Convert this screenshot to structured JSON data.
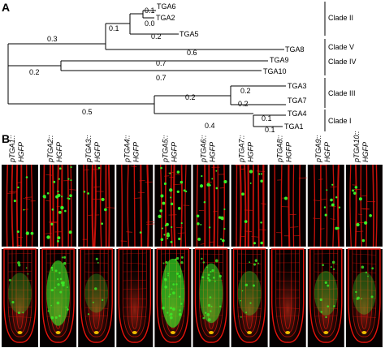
{
  "panel_a": {
    "label": "A",
    "leaves": [
      {
        "name": "TGA6"
      },
      {
        "name": "TGA2"
      },
      {
        "name": "TGA5"
      },
      {
        "name": "TGA8"
      },
      {
        "name": "TGA9"
      },
      {
        "name": "TGA10"
      },
      {
        "name": "TGA3"
      },
      {
        "name": "TGA7"
      },
      {
        "name": "TGA4"
      },
      {
        "name": "TGA1"
      }
    ],
    "branch_lengths": [
      "0.1",
      "0.0",
      "0.1",
      "0.2",
      "0.3",
      "0.6",
      "0.7",
      "0.7",
      "0.2",
      "0.2",
      "0.2",
      "0.2",
      "0.1",
      "0.1",
      "0.4",
      "0.5"
    ],
    "clades": [
      "Clade II",
      "Clade V",
      "Clade IV",
      "Clade III",
      "Clade I"
    ]
  },
  "panel_b": {
    "label": "B",
    "constructs": [
      {
        "prefix": "pTGA1::",
        "suffix": "HGFP",
        "green_level": 0.25
      },
      {
        "prefix": "pTGA2::",
        "suffix": "HGFP",
        "green_level": 0.9
      },
      {
        "prefix": "pTGA3::",
        "suffix": "HGFP",
        "green_level": 0.2
      },
      {
        "prefix": "pTGA4::",
        "suffix": "HGFP",
        "green_level": 0.05
      },
      {
        "prefix": "pTGA5::",
        "suffix": "HGFP",
        "green_level": 1.0
      },
      {
        "prefix": "pTGA6::",
        "suffix": "HGFP",
        "green_level": 0.75
      },
      {
        "prefix": "pTGA7::",
        "suffix": "HGFP",
        "green_level": 0.35
      },
      {
        "prefix": "pTGA8::",
        "suffix": "HGFP",
        "green_level": 0.05
      },
      {
        "prefix": "pTGA9::",
        "suffix": "HGFP",
        "green_level": 0.35
      },
      {
        "prefix": "pTGA10::",
        "suffix": "HGFP",
        "green_level": 0.3
      }
    ],
    "colors": {
      "background": "#050000",
      "cell_wall": "#e8140c",
      "gfp": "#3cf028"
    }
  }
}
